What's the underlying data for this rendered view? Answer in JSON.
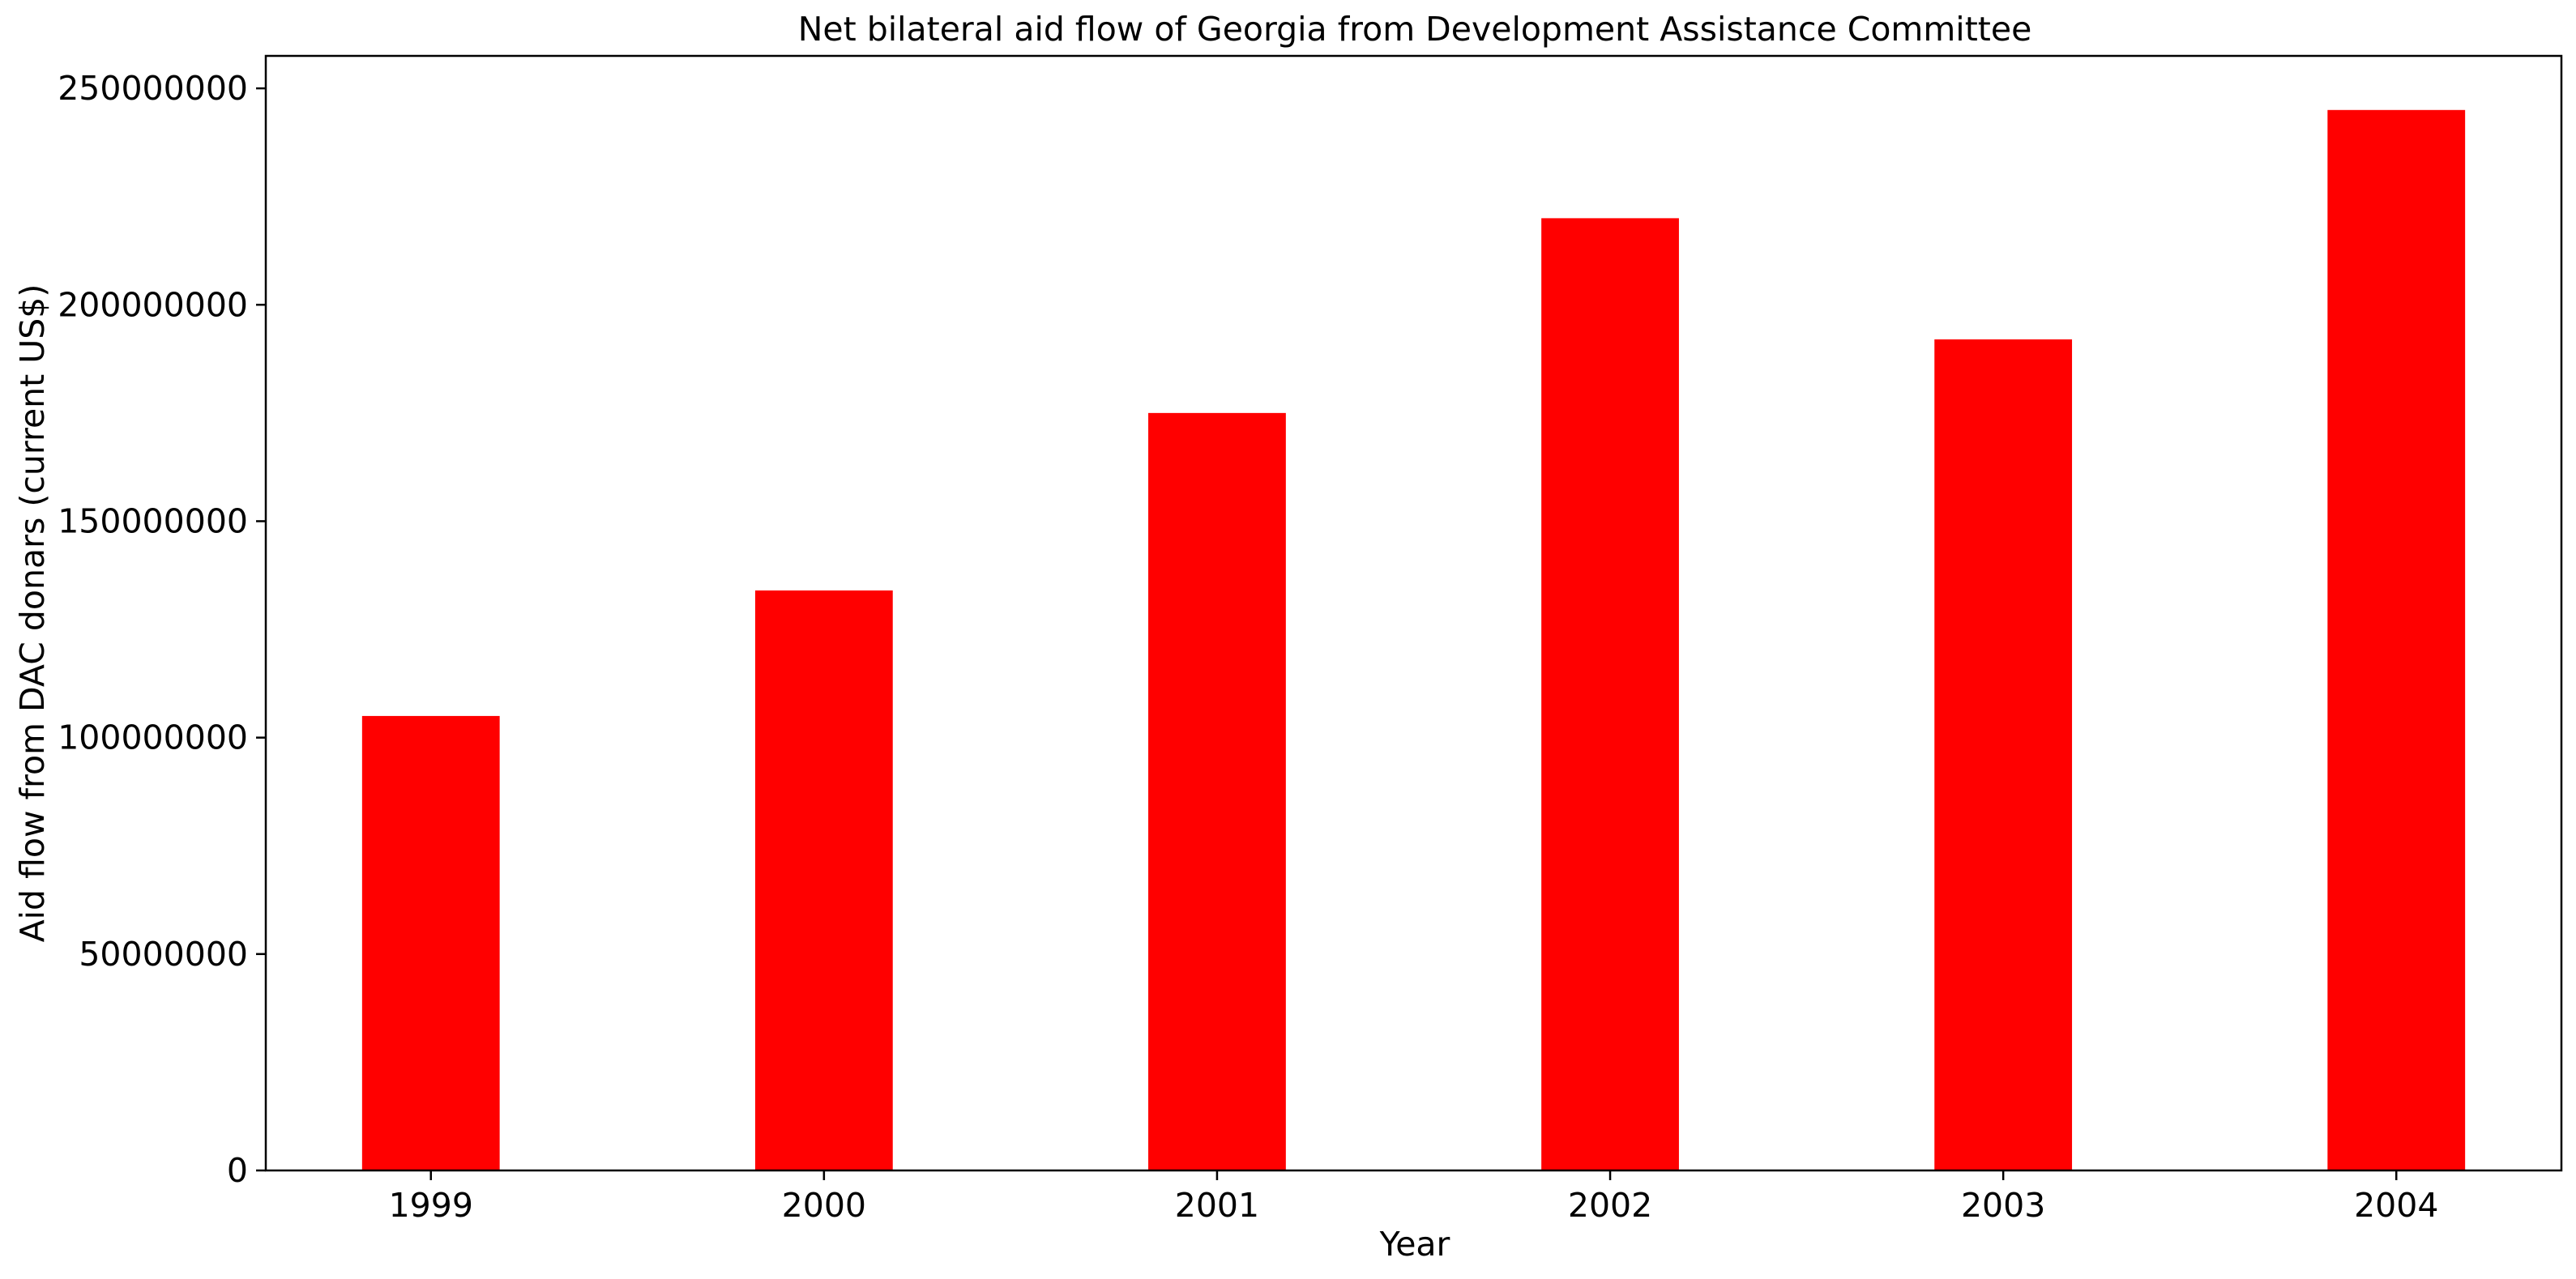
{
  "chart_data": {
    "type": "bar",
    "title": "Net bilateral aid flow of Georgia from Development Assistance Committee",
    "xlabel": "Year",
    "ylabel": "Aid flow from DAC donars (current US$)",
    "categories": [
      "1999",
      "2000",
      "2001",
      "2002",
      "2003",
      "2004"
    ],
    "values": [
      105000000,
      134000000,
      175000000,
      220000000,
      192000000,
      245000000
    ],
    "ylim": [
      0,
      257500000
    ],
    "yticks": [
      0,
      50000000,
      100000000,
      150000000,
      200000000,
      250000000
    ],
    "ytick_labels": [
      "0",
      "50000000",
      "100000000",
      "150000000",
      "200000000",
      "250000000"
    ],
    "bar_color": "#ff0000",
    "grid": false,
    "legend": "none"
  }
}
